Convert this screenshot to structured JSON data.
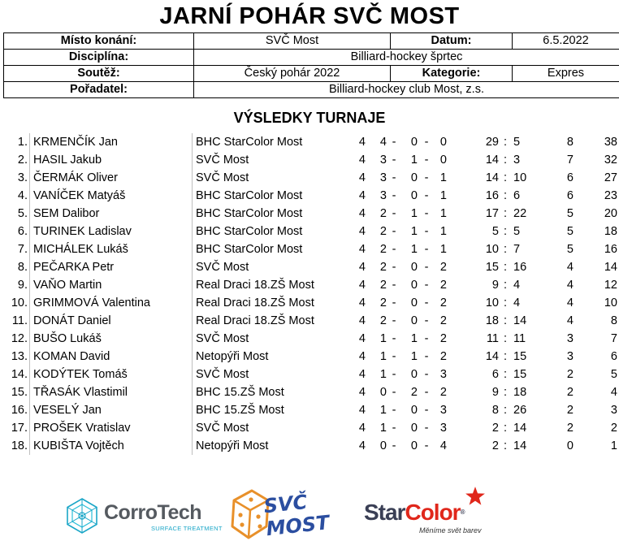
{
  "title": "JARNÍ POHÁR SVČ MOST",
  "info": {
    "place_label": "Místo konání:",
    "place": "SVČ Most",
    "date_label": "Datum:",
    "date": "6.5.2022",
    "discipline_label": "Disciplína:",
    "discipline": "Billiard-hockey šprtec",
    "competition_label": "Soutěž:",
    "competition": "Český pohár 2022",
    "category_label": "Kategorie:",
    "category": "Expres",
    "organizer_label": "Pořadatel:",
    "organizer": "Billiard-hockey club Most, z.s."
  },
  "results_title": "VÝSLEDKY TURNAJE",
  "results": [
    {
      "rank": "1.",
      "name": "KRMENČÍK Jan",
      "team": "BHC StarColor Most",
      "gp": "4",
      "w": "4",
      "d": "0",
      "l": "0",
      "gf": "29",
      "ga": "5",
      "pts": "8",
      "score": "38"
    },
    {
      "rank": "2.",
      "name": "HASIL Jakub",
      "team": "SVČ Most",
      "gp": "4",
      "w": "3",
      "d": "1",
      "l": "0",
      "gf": "14",
      "ga": "3",
      "pts": "7",
      "score": "32"
    },
    {
      "rank": "3.",
      "name": "ČERMÁK Oliver",
      "team": "SVČ Most",
      "gp": "4",
      "w": "3",
      "d": "0",
      "l": "1",
      "gf": "14",
      "ga": "10",
      "pts": "6",
      "score": "27"
    },
    {
      "rank": "4.",
      "name": "VANÍČEK Matyáš",
      "team": "BHC StarColor Most",
      "gp": "4",
      "w": "3",
      "d": "0",
      "l": "1",
      "gf": "16",
      "ga": "6",
      "pts": "6",
      "score": "23"
    },
    {
      "rank": "5.",
      "name": "SEM Dalibor",
      "team": "BHC StarColor Most",
      "gp": "4",
      "w": "2",
      "d": "1",
      "l": "1",
      "gf": "17",
      "ga": "22",
      "pts": "5",
      "score": "20"
    },
    {
      "rank": "6.",
      "name": "TURINEK Ladislav",
      "team": "BHC StarColor Most",
      "gp": "4",
      "w": "2",
      "d": "1",
      "l": "1",
      "gf": "5",
      "ga": "5",
      "pts": "5",
      "score": "18"
    },
    {
      "rank": "7.",
      "name": "MICHÁLEK Lukáš",
      "team": "BHC StarColor Most",
      "gp": "4",
      "w": "2",
      "d": "1",
      "l": "1",
      "gf": "10",
      "ga": "7",
      "pts": "5",
      "score": "16"
    },
    {
      "rank": "8.",
      "name": "PEČARKA Petr",
      "team": "SVČ Most",
      "gp": "4",
      "w": "2",
      "d": "0",
      "l": "2",
      "gf": "15",
      "ga": "16",
      "pts": "4",
      "score": "14"
    },
    {
      "rank": "9.",
      "name": "VAŇO Martin",
      "team": "Real Draci 18.ZŠ Most",
      "gp": "4",
      "w": "2",
      "d": "0",
      "l": "2",
      "gf": "9",
      "ga": "4",
      "pts": "4",
      "score": "12"
    },
    {
      "rank": "10.",
      "name": "GRIMMOVÁ Valentina",
      "team": "Real Draci 18.ZŠ Most",
      "gp": "4",
      "w": "2",
      "d": "0",
      "l": "2",
      "gf": "10",
      "ga": "4",
      "pts": "4",
      "score": "10"
    },
    {
      "rank": "11.",
      "name": "DONÁT Daniel",
      "team": "Real Draci 18.ZŠ Most",
      "gp": "4",
      "w": "2",
      "d": "0",
      "l": "2",
      "gf": "18",
      "ga": "14",
      "pts": "4",
      "score": "8"
    },
    {
      "rank": "12.",
      "name": "BUŠO Lukáš",
      "team": "SVČ Most",
      "gp": "4",
      "w": "1",
      "d": "1",
      "l": "2",
      "gf": "11",
      "ga": "11",
      "pts": "3",
      "score": "7"
    },
    {
      "rank": "13.",
      "name": "KOMAN David",
      "team": "Netopýři Most",
      "gp": "4",
      "w": "1",
      "d": "1",
      "l": "2",
      "gf": "14",
      "ga": "15",
      "pts": "3",
      "score": "6"
    },
    {
      "rank": "14.",
      "name": "KODÝTEK Tomáš",
      "team": "SVČ Most",
      "gp": "4",
      "w": "1",
      "d": "0",
      "l": "3",
      "gf": "6",
      "ga": "15",
      "pts": "2",
      "score": "5"
    },
    {
      "rank": "15.",
      "name": "TŘASÁK Vlastimil",
      "team": "BHC 15.ZŠ Most",
      "gp": "4",
      "w": "0",
      "d": "2",
      "l": "2",
      "gf": "9",
      "ga": "18",
      "pts": "2",
      "score": "4"
    },
    {
      "rank": "16.",
      "name": "VESELÝ Jan",
      "team": "BHC 15.ZŠ Most",
      "gp": "4",
      "w": "1",
      "d": "0",
      "l": "3",
      "gf": "8",
      "ga": "26",
      "pts": "2",
      "score": "3"
    },
    {
      "rank": "17.",
      "name": "PROŠEK Vratislav",
      "team": "SVČ Most",
      "gp": "4",
      "w": "1",
      "d": "0",
      "l": "3",
      "gf": "2",
      "ga": "14",
      "pts": "2",
      "score": "2"
    },
    {
      "rank": "18.",
      "name": "KUBIŠTA Vojtěch",
      "team": "Netopýři Most",
      "gp": "4",
      "w": "0",
      "d": "0",
      "l": "4",
      "gf": "2",
      "ga": "14",
      "pts": "0",
      "score": "1"
    }
  ],
  "separators": {
    "dash": "-",
    "colon": ":"
  },
  "sponsors": {
    "corrotech_name": "CorroTech",
    "corrotech_sub": "SURFACE TREATMENT",
    "svc_name": "SVČ MOST",
    "starcolor_star": "Star",
    "starcolor_color": "Color",
    "starcolor_sub": "Měníme svět barev",
    "colors": {
      "corrotech_gray": "#555a60",
      "corrotech_cyan": "#1aa6c7",
      "svc_orange": "#e8902a",
      "svc_blue": "#2b4ea0",
      "starcolor_red": "#e0271b",
      "starcolor_dark": "#3a3f55"
    }
  }
}
